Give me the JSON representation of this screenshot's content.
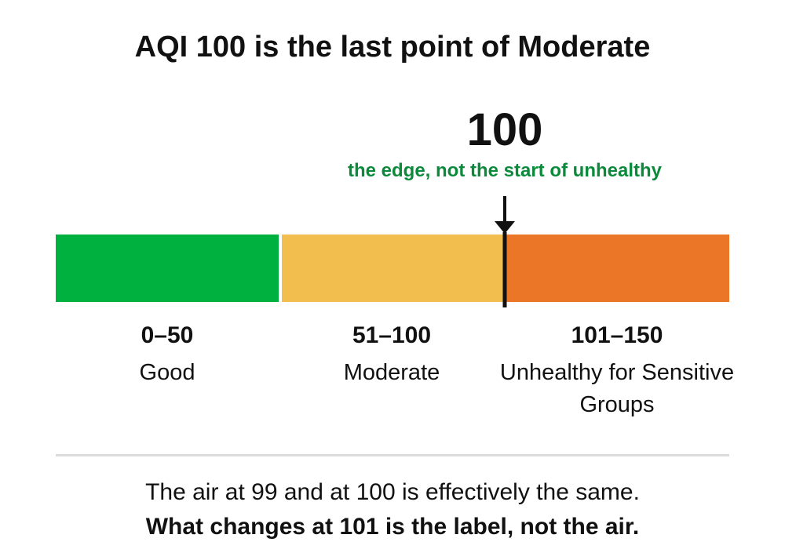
{
  "title": "AQI 100 is the last point of Moderate",
  "marker": {
    "value": "100",
    "caption": "the edge, not the start of unhealthy",
    "caption_color": "#0a8a3a"
  },
  "scale": {
    "segments": [
      {
        "range": "0–50",
        "category": "Good",
        "color": "#00b140"
      },
      {
        "range": "51–100",
        "category": "Moderate",
        "color": "#f2be4e"
      },
      {
        "range": "101–150",
        "category": "Unhealthy for Sensitive Groups",
        "color": "#ec7627"
      }
    ]
  },
  "footer": {
    "line1": "The air at 99 and at 100 is effectively the same.",
    "line2": "What changes at 101 is the label, not the air."
  }
}
